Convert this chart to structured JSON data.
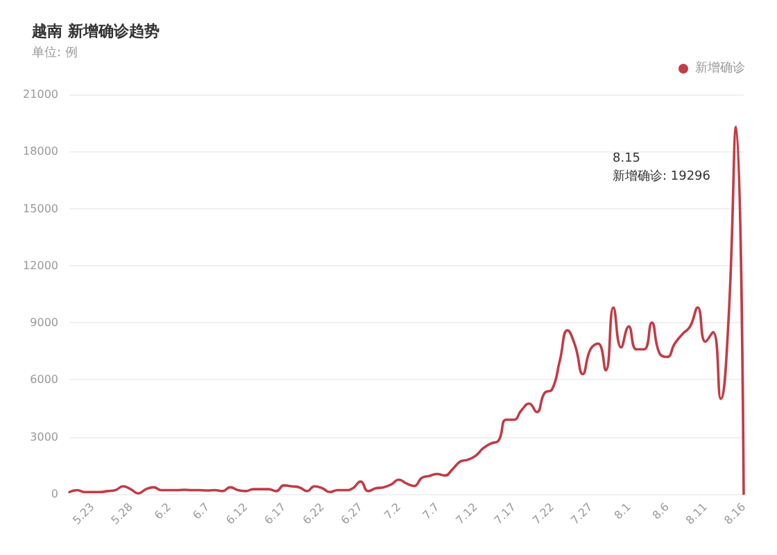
{
  "chart_data": {
    "type": "line",
    "title": "越南 新增确诊趋势",
    "subtitle": "单位: 例",
    "categories": [
      null,
      null,
      null,
      "5.23",
      null,
      null,
      null,
      null,
      "5.28",
      null,
      null,
      null,
      null,
      "6.2",
      null,
      null,
      null,
      null,
      "6.7",
      null,
      null,
      null,
      null,
      "6.12",
      null,
      null,
      null,
      null,
      "6.17",
      null,
      null,
      null,
      null,
      "6.22",
      null,
      null,
      null,
      null,
      "6.27",
      null,
      null,
      null,
      null,
      "7.2",
      null,
      null,
      null,
      null,
      "7.7",
      null,
      null,
      null,
      null,
      "7.12",
      null,
      null,
      null,
      null,
      "7.17",
      null,
      null,
      null,
      null,
      "7.22",
      null,
      null,
      null,
      null,
      "7.27",
      null,
      null,
      null,
      null,
      "8.1",
      null,
      null,
      null,
      null,
      "8.6",
      null,
      null,
      null,
      null,
      "8.11",
      null,
      null,
      null,
      null,
      "8.16"
    ],
    "series": [
      {
        "name": "新增确诊",
        "color": "#c23b45",
        "values": [
          100,
          200,
          100,
          100,
          100,
          150,
          200,
          400,
          250,
          30,
          250,
          350,
          200,
          200,
          200,
          220,
          200,
          200,
          180,
          200,
          150,
          350,
          200,
          150,
          250,
          250,
          250,
          150,
          450,
          400,
          350,
          150,
          400,
          300,
          100,
          200,
          200,
          300,
          650,
          150,
          300,
          350,
          500,
          750,
          550,
          420,
          850,
          950,
          1050,
          970,
          1300,
          1700,
          1800,
          2000,
          2400,
          2650,
          2800,
          3900,
          3900,
          4400,
          4750,
          4300,
          5300,
          5500,
          7000,
          8600,
          7800,
          6300,
          7600,
          7900,
          6500,
          9800,
          7700,
          8800,
          7600,
          7600,
          9000,
          7400,
          7200,
          7900,
          8400,
          8800,
          9800,
          8000,
          8500,
          5000,
          9000,
          19296,
          0
        ]
      }
    ],
    "ylim": [
      0,
      21000
    ],
    "yticks": [
      0,
      3000,
      6000,
      9000,
      12000,
      15000,
      18000,
      21000
    ],
    "grid": "y",
    "legend": "top right",
    "marker": "none",
    "line_style": "solid",
    "annotations": [
      "8.15\n新增确诊: 19296"
    ]
  }
}
